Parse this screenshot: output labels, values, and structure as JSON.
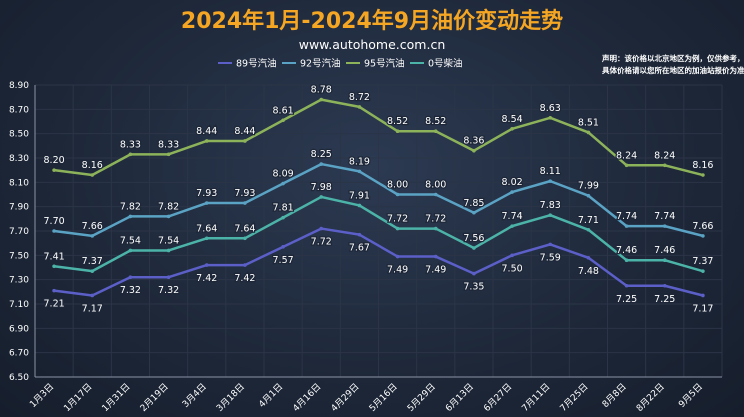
{
  "title": "2024年1月-2024年9月油价变动走势",
  "subtitle": "www.autohome.com.cn",
  "note": [
    "声明：该价格以北京地区为例，仅供参考，",
    "具体价格请以您所在地区的加油站报价为准。"
  ],
  "colors": {
    "title": "#f5a623",
    "text": "#ffffff",
    "axis": "#8a94a6",
    "grid": "#2b3547"
  },
  "chart_data": {
    "type": "line",
    "categories": [
      "1月3日",
      "1月17日",
      "1月31日",
      "2月19日",
      "3月4日",
      "3月18日",
      "4月1日",
      "4月16日",
      "4月29日",
      "5月16日",
      "5月29日",
      "6月13日",
      "6月27日",
      "7月11日",
      "7月25日",
      "8月8日",
      "8月22日",
      "9月5日"
    ],
    "ylim": [
      6.5,
      8.9
    ],
    "yticks": [
      "6.50",
      "6.70",
      "6.90",
      "7.10",
      "7.30",
      "7.50",
      "7.70",
      "7.90",
      "8.10",
      "8.30",
      "8.50",
      "8.70",
      "8.90"
    ],
    "grid": true,
    "legend_position": "top",
    "series": [
      {
        "name": "89号汽油",
        "color": "#5b5fc7",
        "values": [
          7.21,
          7.17,
          7.32,
          7.32,
          7.42,
          7.42,
          7.57,
          7.72,
          7.67,
          7.49,
          7.49,
          7.35,
          7.5,
          7.59,
          7.48,
          7.25,
          7.25,
          7.17
        ],
        "labels": [
          "7.21",
          "7.17",
          "7.32",
          "7.32",
          "7.42",
          "7.42",
          "7.57",
          "7.72",
          "7.67",
          "7.49",
          "7.49",
          "7.35",
          "7.50",
          "7.59",
          "7.48",
          "7.25",
          "7.25",
          "7.17"
        ],
        "label_pos": "below"
      },
      {
        "name": "92号汽油",
        "color": "#5ba3c4",
        "values": [
          7.7,
          7.66,
          7.82,
          7.82,
          7.93,
          7.93,
          8.09,
          8.25,
          8.19,
          8.0,
          8.0,
          7.85,
          8.02,
          8.11,
          7.99,
          7.74,
          7.74,
          7.66
        ],
        "labels": [
          "7.70",
          "7.66",
          "7.82",
          "7.82",
          "7.93",
          "7.93",
          "8.09",
          "8.25",
          "8.19",
          "8.00",
          "8.00",
          "7.85",
          "8.02",
          "8.11",
          "7.99",
          "7.74",
          "7.74",
          "7.66"
        ],
        "label_pos": "above"
      },
      {
        "name": "95号汽油",
        "color": "#8db35a",
        "values": [
          8.2,
          8.16,
          8.33,
          8.33,
          8.44,
          8.44,
          8.61,
          8.78,
          8.72,
          8.52,
          8.52,
          8.36,
          8.54,
          8.63,
          8.51,
          8.24,
          8.24,
          8.16
        ],
        "labels": [
          "8.20",
          "8.16",
          "8.33",
          "8.33",
          "8.44",
          "8.44",
          "8.61",
          "8.78",
          "8.72",
          "8.52",
          "8.52",
          "8.36",
          "8.54",
          "8.63",
          "8.51",
          "8.24",
          "8.24",
          "8.16"
        ],
        "label_pos": "above"
      },
      {
        "name": "0号柴油",
        "color": "#4cb3a8",
        "values": [
          7.41,
          7.37,
          7.54,
          7.54,
          7.64,
          7.64,
          7.81,
          7.98,
          7.91,
          7.72,
          7.72,
          7.56,
          7.74,
          7.83,
          7.71,
          7.46,
          7.46,
          7.37
        ],
        "labels": [
          "7.41",
          "7.37",
          "7.54",
          "7.54",
          "7.64",
          "7.64",
          "7.81",
          "7.98",
          "7.91",
          "7.72",
          "7.72",
          "7.56",
          "7.74",
          "7.83",
          "7.71",
          "7.46",
          "7.46",
          "7.37"
        ],
        "label_pos": "above"
      }
    ]
  }
}
